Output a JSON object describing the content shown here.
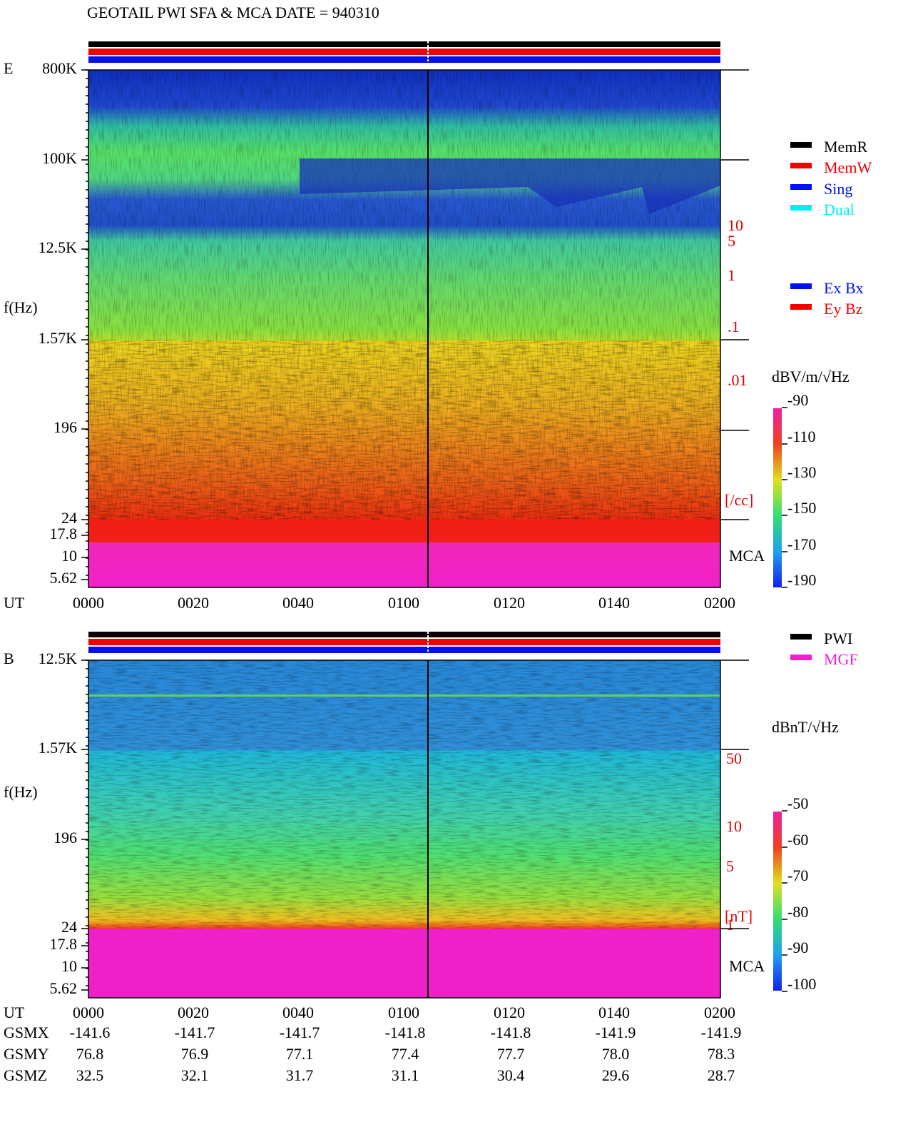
{
  "title": "GEOTAIL  PWI SFA & MCA   DATE = 940310",
  "panels": [
    {
      "label": "E",
      "y_axis_label": "f(Hz)",
      "y_ticks": [
        "800K",
        "100K",
        "12.5K",
        "1.57K",
        "196",
        "24",
        "17.8",
        "10",
        "5.62"
      ],
      "right_labels": [
        "10",
        "5",
        "1",
        ".1",
        ".01",
        "[/cc]"
      ],
      "mca_label": "MCA",
      "x_axis_label": "UT",
      "x_ticks": [
        "0000",
        "0020",
        "0040",
        "0100",
        "0120",
        "0140",
        "0200"
      ],
      "legend": [
        "MemR",
        "MemW",
        "Sing",
        "Dual"
      ],
      "legend2": [
        "Ex Bx",
        "Ey Bz"
      ],
      "colorbar": {
        "unit": "dBV/m/√Hz",
        "ticks": [
          "-90",
          "-110",
          "-130",
          "-150",
          "-170",
          "-190"
        ]
      }
    },
    {
      "label": "B",
      "y_axis_label": "f(Hz)",
      "y_ticks": [
        "12.5K",
        "1.57K",
        "196",
        "24",
        "17.8",
        "10",
        "5.62"
      ],
      "right_labels": [
        "50",
        "10",
        "5",
        "1",
        "[nT]"
      ],
      "mca_label": "MCA",
      "legend": [
        "PWI",
        "MGF"
      ],
      "colorbar": {
        "unit": "dBnT/√Hz",
        "ticks": [
          "-50",
          "-60",
          "-70",
          "-80",
          "-90",
          "-100"
        ]
      }
    }
  ],
  "ephemeris": {
    "x_axis_label": "UT",
    "x_ticks": [
      "0000",
      "0020",
      "0040",
      "0100",
      "0120",
      "0140",
      "0200"
    ],
    "rows": [
      {
        "label": "GSMX",
        "values": [
          "-141.6",
          "-141.7",
          "-141.7",
          "-141.8",
          "-141.8",
          "-141.9",
          "-141.9"
        ]
      },
      {
        "label": "GSMY",
        "values": [
          "76.8",
          "76.9",
          "77.1",
          "77.4",
          "77.7",
          "78.0",
          "78.3"
        ]
      },
      {
        "label": "GSMZ",
        "values": [
          "32.5",
          "32.1",
          "31.7",
          "31.1",
          "30.4",
          "29.6",
          "28.7"
        ]
      }
    ]
  }
}
